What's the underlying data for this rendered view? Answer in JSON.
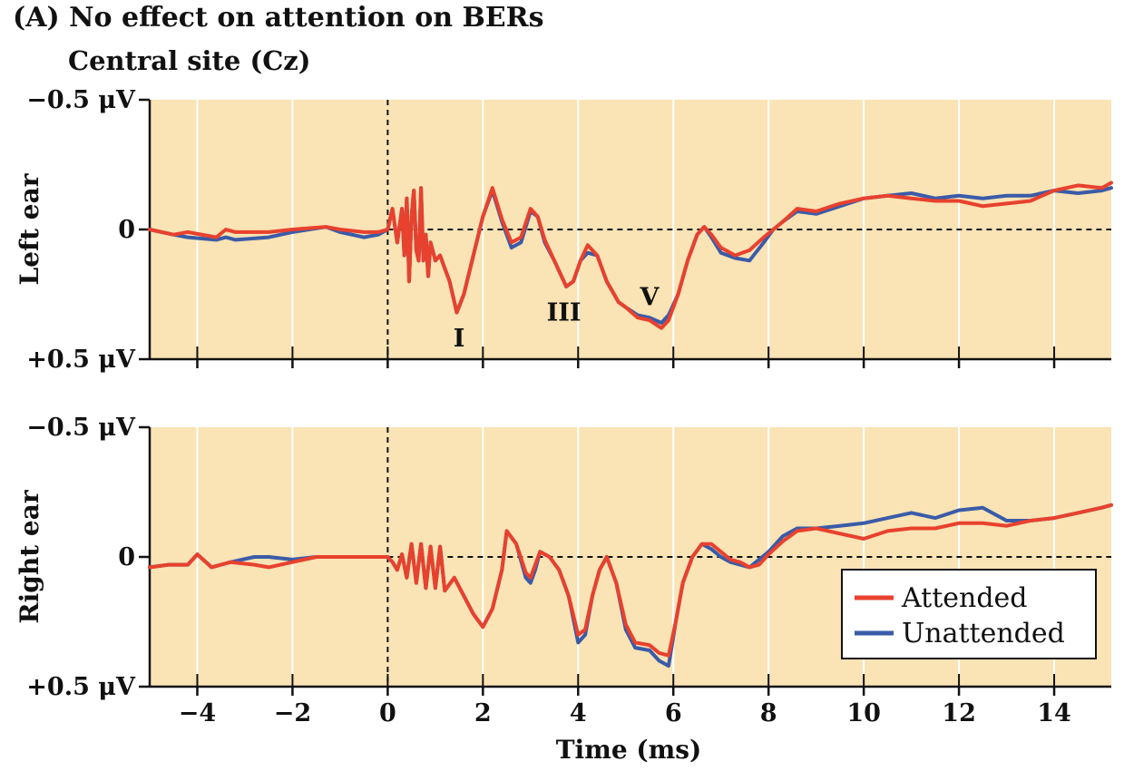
{
  "figure": {
    "title": "(A)  No effect on attention on BERs",
    "subtitle": "Central site (Cz)",
    "x_axis_label": "Time (ms)"
  },
  "legend": {
    "items": [
      {
        "label": "Attended",
        "color": "#e8412e"
      },
      {
        "label": "Unattended",
        "color": "#3a5ba8"
      }
    ]
  },
  "colors": {
    "background": "#fae3b4",
    "grid": "#ffffff",
    "attended": "#e8412e",
    "unattended": "#3a5ba8"
  },
  "chart_data": [
    {
      "type": "line",
      "panel": "Left ear",
      "ylabel": "Left ear",
      "xlim": [
        -5,
        15.2
      ],
      "ylim": [
        -0.5,
        0.5
      ],
      "y_inverted": true,
      "y_tick_labels": [
        "−0.5 μV",
        "0",
        "+0.5 μV"
      ],
      "x_tick_labels": [
        "−4",
        "−2",
        "0",
        "2",
        "4",
        "6",
        "8",
        "10",
        "12",
        "14"
      ],
      "x_ticks": [
        -4,
        -2,
        0,
        2,
        4,
        6,
        8,
        10,
        12,
        14
      ],
      "peaks": [
        {
          "label": "I",
          "x": 1.5,
          "y": 0.42
        },
        {
          "label": "III",
          "x": 3.7,
          "y": 0.32
        },
        {
          "label": "V",
          "x": 5.5,
          "y": 0.26
        }
      ],
      "series": [
        {
          "name": "Attended",
          "x": [
            -5,
            -4.5,
            -4.2,
            -3.6,
            -3.4,
            -3.2,
            -2.5,
            -2.0,
            -1.3,
            -1.0,
            -0.5,
            -0.2,
            0.0,
            0.1,
            0.2,
            0.3,
            0.35,
            0.4,
            0.45,
            0.5,
            0.55,
            0.6,
            0.65,
            0.7,
            0.75,
            0.8,
            0.85,
            0.9,
            1.0,
            1.1,
            1.2,
            1.3,
            1.45,
            1.6,
            1.8,
            2.0,
            2.2,
            2.4,
            2.6,
            2.8,
            3.0,
            3.15,
            3.3,
            3.5,
            3.75,
            3.9,
            4.05,
            4.2,
            4.4,
            4.6,
            4.85,
            5.0,
            5.25,
            5.5,
            5.75,
            5.9,
            6.1,
            6.3,
            6.5,
            6.65,
            6.8,
            7.0,
            7.3,
            7.6,
            7.9,
            8.1,
            8.3,
            8.6,
            9.0,
            9.5,
            10.0,
            10.5,
            11.0,
            11.5,
            12.0,
            12.5,
            13.0,
            13.5,
            14.0,
            14.5,
            15.0,
            15.2
          ],
          "y": [
            0.0,
            0.02,
            0.01,
            0.03,
            0.0,
            0.01,
            0.01,
            0.0,
            -0.01,
            0.0,
            0.01,
            0.01,
            0.0,
            -0.08,
            0.05,
            -0.08,
            0.1,
            -0.12,
            0.2,
            -0.05,
            -0.15,
            0.08,
            0.12,
            -0.16,
            0.12,
            0.02,
            0.18,
            0.05,
            0.12,
            0.1,
            0.15,
            0.2,
            0.32,
            0.25,
            0.1,
            -0.05,
            -0.16,
            -0.04,
            0.05,
            0.03,
            -0.08,
            -0.05,
            0.04,
            0.12,
            0.22,
            0.2,
            0.12,
            0.06,
            0.1,
            0.2,
            0.28,
            0.3,
            0.34,
            0.35,
            0.38,
            0.35,
            0.25,
            0.12,
            0.02,
            -0.01,
            0.02,
            0.07,
            0.1,
            0.08,
            0.03,
            0.0,
            -0.03,
            -0.08,
            -0.07,
            -0.1,
            -0.12,
            -0.13,
            -0.12,
            -0.11,
            -0.11,
            -0.09,
            -0.1,
            -0.11,
            -0.15,
            -0.17,
            -0.16,
            -0.18
          ]
        },
        {
          "name": "Unattended",
          "x": [
            -5,
            -4.5,
            -4.2,
            -3.6,
            -3.4,
            -3.2,
            -2.5,
            -2.0,
            -1.3,
            -1.0,
            -0.5,
            -0.2,
            0.0,
            0.1,
            0.2,
            0.3,
            0.35,
            0.4,
            0.45,
            0.5,
            0.55,
            0.6,
            0.65,
            0.7,
            0.75,
            0.8,
            0.85,
            0.9,
            1.0,
            1.1,
            1.2,
            1.3,
            1.45,
            1.6,
            1.8,
            2.0,
            2.2,
            2.4,
            2.6,
            2.8,
            3.0,
            3.15,
            3.3,
            3.5,
            3.75,
            3.9,
            4.05,
            4.2,
            4.4,
            4.6,
            4.85,
            5.0,
            5.25,
            5.5,
            5.75,
            5.9,
            6.1,
            6.3,
            6.5,
            6.65,
            6.8,
            7.0,
            7.3,
            7.6,
            7.9,
            8.1,
            8.3,
            8.6,
            9.0,
            9.5,
            10.0,
            10.5,
            11.0,
            11.5,
            12.0,
            12.5,
            13.0,
            13.5,
            14.0,
            14.5,
            15.0,
            15.2
          ],
          "y": [
            0.0,
            0.02,
            0.03,
            0.04,
            0.03,
            0.04,
            0.03,
            0.01,
            -0.01,
            0.01,
            0.03,
            0.02,
            0.0,
            -0.08,
            0.05,
            -0.08,
            0.1,
            -0.12,
            0.2,
            -0.05,
            -0.15,
            0.08,
            0.12,
            -0.16,
            0.12,
            0.02,
            0.18,
            0.05,
            0.12,
            0.1,
            0.15,
            0.2,
            0.32,
            0.25,
            0.1,
            -0.05,
            -0.15,
            -0.03,
            0.07,
            0.05,
            -0.07,
            -0.05,
            0.05,
            0.12,
            0.22,
            0.2,
            0.12,
            0.09,
            0.1,
            0.2,
            0.28,
            0.3,
            0.33,
            0.34,
            0.36,
            0.33,
            0.25,
            0.12,
            0.02,
            -0.01,
            0.03,
            0.09,
            0.11,
            0.12,
            0.05,
            0.0,
            -0.03,
            -0.07,
            -0.06,
            -0.09,
            -0.12,
            -0.13,
            -0.14,
            -0.12,
            -0.13,
            -0.12,
            -0.13,
            -0.13,
            -0.15,
            -0.14,
            -0.15,
            -0.16
          ]
        }
      ]
    },
    {
      "type": "line",
      "panel": "Right ear",
      "ylabel": "Right ear",
      "xlim": [
        -5,
        15.2
      ],
      "ylim": [
        -0.5,
        0.5
      ],
      "y_inverted": true,
      "y_tick_labels": [
        "−0.5 μV",
        "0",
        "+0.5 μV"
      ],
      "x_tick_labels": [
        "−4",
        "−2",
        "0",
        "2",
        "4",
        "6",
        "8",
        "10",
        "12",
        "14"
      ],
      "x_ticks": [
        -4,
        -2,
        0,
        2,
        4,
        6,
        8,
        10,
        12,
        14
      ],
      "series": [
        {
          "name": "Attended",
          "x": [
            -5,
            -4.6,
            -4.2,
            -4.0,
            -3.7,
            -3.3,
            -2.8,
            -2.5,
            -2.0,
            -1.5,
            -1.0,
            -0.5,
            0.0,
            0.1,
            0.2,
            0.3,
            0.4,
            0.5,
            0.6,
            0.7,
            0.8,
            0.9,
            1.0,
            1.1,
            1.2,
            1.4,
            1.6,
            1.8,
            2.0,
            2.2,
            2.4,
            2.5,
            2.7,
            2.9,
            3.0,
            3.1,
            3.2,
            3.4,
            3.6,
            3.8,
            4.0,
            4.15,
            4.3,
            4.45,
            4.6,
            4.8,
            5.0,
            5.2,
            5.5,
            5.7,
            5.9,
            6.05,
            6.2,
            6.4,
            6.6,
            6.8,
            7.0,
            7.2,
            7.4,
            7.6,
            7.8,
            8.0,
            8.3,
            8.6,
            9.0,
            9.5,
            10.0,
            10.5,
            11.0,
            11.5,
            12.0,
            12.5,
            13.0,
            13.5,
            14.0,
            14.5,
            15.0,
            15.2
          ],
          "y": [
            0.04,
            0.03,
            0.03,
            -0.01,
            0.04,
            0.02,
            0.03,
            0.04,
            0.02,
            0.0,
            0.0,
            0.0,
            0.0,
            0.02,
            0.05,
            -0.01,
            0.08,
            -0.05,
            0.1,
            -0.05,
            0.12,
            -0.04,
            0.12,
            -0.04,
            0.13,
            0.08,
            0.15,
            0.22,
            0.27,
            0.2,
            0.05,
            -0.1,
            -0.05,
            0.06,
            0.08,
            0.03,
            -0.02,
            0.0,
            0.05,
            0.15,
            0.3,
            0.28,
            0.15,
            0.05,
            0.0,
            0.1,
            0.26,
            0.33,
            0.34,
            0.37,
            0.38,
            0.25,
            0.1,
            0.0,
            -0.05,
            -0.05,
            -0.02,
            0.01,
            0.02,
            0.04,
            0.03,
            -0.01,
            -0.06,
            -0.1,
            -0.11,
            -0.09,
            -0.07,
            -0.1,
            -0.11,
            -0.11,
            -0.13,
            -0.13,
            -0.12,
            -0.14,
            -0.15,
            -0.17,
            -0.19,
            -0.2
          ]
        },
        {
          "name": "Unattended",
          "x": [
            -5,
            -4.6,
            -4.2,
            -4.0,
            -3.7,
            -3.3,
            -2.8,
            -2.5,
            -2.0,
            -1.5,
            -1.0,
            -0.5,
            0.0,
            0.1,
            0.2,
            0.3,
            0.4,
            0.5,
            0.6,
            0.7,
            0.8,
            0.9,
            1.0,
            1.1,
            1.2,
            1.4,
            1.6,
            1.8,
            2.0,
            2.2,
            2.4,
            2.5,
            2.7,
            2.9,
            3.0,
            3.1,
            3.2,
            3.4,
            3.6,
            3.8,
            4.0,
            4.15,
            4.3,
            4.45,
            4.6,
            4.8,
            5.0,
            5.2,
            5.5,
            5.7,
            5.9,
            6.05,
            6.2,
            6.4,
            6.6,
            6.8,
            7.0,
            7.2,
            7.4,
            7.6,
            7.8,
            8.0,
            8.3,
            8.6,
            9.0,
            9.5,
            10.0,
            10.5,
            11.0,
            11.5,
            12.0,
            12.5,
            13.0,
            13.5,
            14.0,
            14.5,
            15.0,
            15.2
          ],
          "y": [
            0.04,
            0.03,
            0.03,
            -0.01,
            0.04,
            0.02,
            0.0,
            0.0,
            0.01,
            0.0,
            0.0,
            0.0,
            0.0,
            0.02,
            0.05,
            -0.01,
            0.08,
            -0.05,
            0.1,
            -0.05,
            0.12,
            -0.04,
            0.12,
            -0.04,
            0.13,
            0.08,
            0.15,
            0.22,
            0.27,
            0.2,
            0.05,
            -0.1,
            -0.05,
            0.08,
            0.1,
            0.05,
            -0.02,
            0.0,
            0.05,
            0.15,
            0.33,
            0.3,
            0.15,
            0.05,
            0.0,
            0.1,
            0.28,
            0.35,
            0.36,
            0.4,
            0.42,
            0.25,
            0.1,
            0.0,
            -0.05,
            -0.03,
            0.0,
            0.02,
            0.03,
            0.04,
            0.01,
            -0.02,
            -0.08,
            -0.11,
            -0.11,
            -0.12,
            -0.13,
            -0.15,
            -0.17,
            -0.15,
            -0.18,
            -0.19,
            -0.14,
            -0.14,
            -0.15,
            -0.17,
            -0.19,
            -0.2
          ]
        }
      ]
    }
  ]
}
